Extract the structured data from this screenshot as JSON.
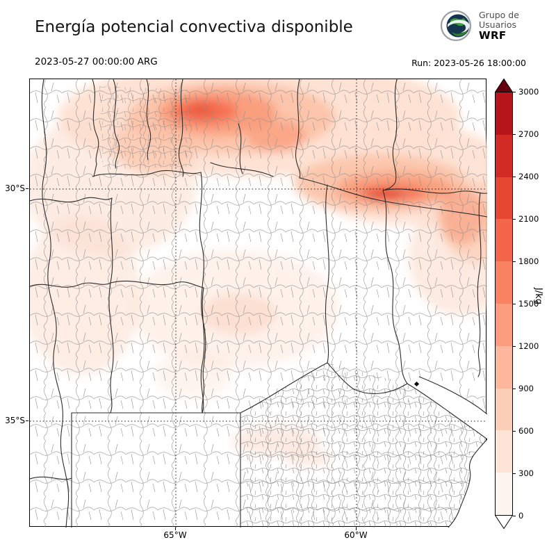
{
  "header": {
    "title": "Energía potencial convectiva disponible",
    "logo": {
      "line1": "Grupo de",
      "line2": "Usuarios",
      "line3": "WRF"
    },
    "valid_time": "2023-05-27 00:00:00 ARG",
    "run_label": "Run: 2023-05-26 18:00:00"
  },
  "chart_data": {
    "type": "heatmap",
    "title": "Energía potencial convectiva disponible",
    "valid_time": "2023-05-27 00:00:00 ARG",
    "run": "Run: 2023-05-26 18:00:00",
    "x_axis": {
      "tick_labels": [
        "65°W",
        "60°W"
      ],
      "grid": "dotted"
    },
    "y_axis": {
      "tick_labels": [
        "30°S",
        "35°S"
      ],
      "grid": "dotted"
    },
    "colorbar": {
      "label": "J/kg",
      "ticks": [
        0,
        300,
        600,
        900,
        1200,
        1500,
        1800,
        2100,
        2400,
        2700,
        3000
      ],
      "colors": [
        "#fff5f0",
        "#fee3d7",
        "#fccfb8",
        "#fcb79c",
        "#fb9d7d",
        "#f98263",
        "#f4664a",
        "#e64733",
        "#d22b26",
        "#b5151b"
      ],
      "over_color": "#67000d",
      "under_color": "#ffffff"
    },
    "features": [
      {
        "area": "band across northern edge of domain (~27.5–29°S)",
        "cape_jkg": "300–1800"
      },
      {
        "area": "elongated streak near 30°S between ~61°W and 58°W",
        "cape_jkg": "900–1800"
      },
      {
        "area": "western foothills and central patches (31–34°S)",
        "cape_jkg": "0–600"
      },
      {
        "area": "south of ~33°S and southeast (Buenos Aires)",
        "cape_jkg": "~0"
      }
    ]
  }
}
